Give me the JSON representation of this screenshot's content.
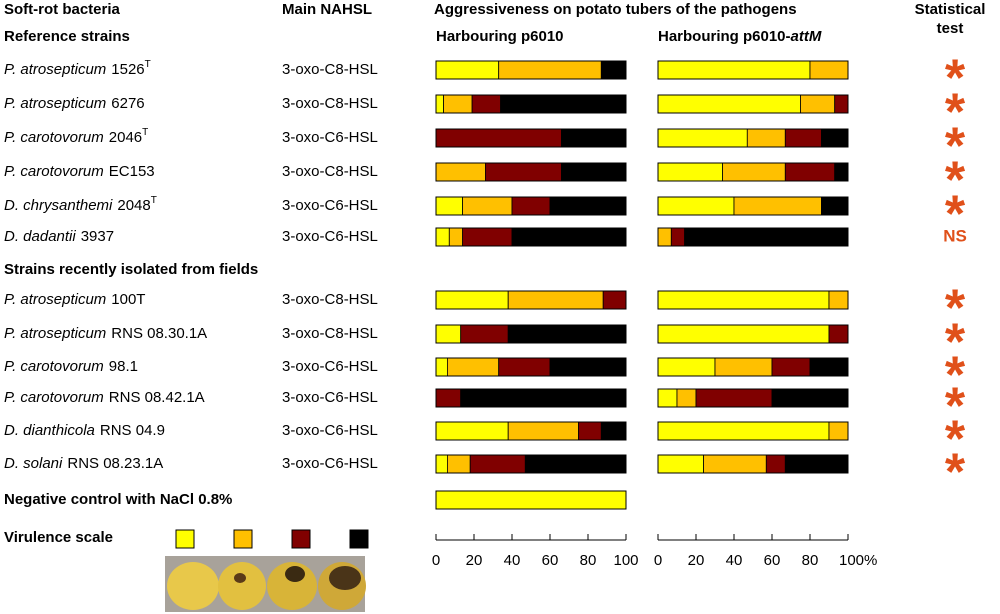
{
  "chart_data": {
    "type": "stacked-bar",
    "headers": {
      "strain": "Soft-rot bacteria",
      "hsl": "Main NAHSL",
      "aggr": "Aggressiveness on potato tubers of the pathogens",
      "test": [
        "Statistical",
        "test"
      ],
      "left_panel": "Harbouring p6010",
      "right_panel": {
        "text": "Harbouring p6010-",
        "italic": "attM"
      }
    },
    "colors": [
      "#ffff00",
      "#ffc000",
      "#800000",
      "#000000"
    ],
    "xlim": [
      0,
      100
    ],
    "xticks": [
      0,
      20,
      40,
      60,
      80,
      100
    ],
    "xticks_right": [
      0,
      20,
      40,
      60,
      80,
      {
        "value": 100,
        "label": "100%"
      }
    ],
    "groups": [
      {
        "title": "Reference strains",
        "rows": [
          {
            "genus": "P. atrosepticum",
            "strain": "1526",
            "sup": "T",
            "hsl": "3-oxo-C8-HSL",
            "p6010": [
              33,
              54,
              0,
              13
            ],
            "attm": [
              80,
              20,
              0,
              0
            ],
            "test": "*"
          },
          {
            "genus": "P. atrosepticum",
            "strain": "6276",
            "hsl": "3-oxo-C8-HSL",
            "p6010": [
              4,
              15,
              15,
              66
            ],
            "attm": [
              75,
              18,
              7,
              0
            ],
            "test": "*"
          },
          {
            "genus": "P. carotovorum",
            "strain": "2046",
            "sup": "T",
            "hsl": "3-oxo-C6-HSL",
            "p6010": [
              0,
              0,
              66,
              34
            ],
            "attm": [
              47,
              20,
              19,
              14
            ],
            "test": "*"
          },
          {
            "genus": "P. carotovorum",
            "strain": "EC153",
            "hsl": "3-oxo-C8-HSL",
            "p6010": [
              0,
              26,
              40,
              34
            ],
            "attm": [
              34,
              33,
              26,
              7
            ],
            "test": "*"
          },
          {
            "genus": "D. chrysanthemi",
            "strain": "2048",
            "sup": "T",
            "hsl": "3-oxo-C6-HSL",
            "p6010": [
              14,
              26,
              20,
              40
            ],
            "attm": [
              40,
              46,
              0,
              14
            ],
            "test": "*"
          },
          {
            "genus": "D. dadantii",
            "strain": "3937",
            "hsl": "3-oxo-C6-HSL",
            "p6010": [
              7,
              7,
              26,
              60
            ],
            "attm": [
              0,
              7,
              7,
              86
            ],
            "test": "NS"
          }
        ]
      },
      {
        "title": "Strains recently isolated from fields",
        "rows": [
          {
            "genus": "P. atrosepticum",
            "strain": "100T",
            "hsl": "3-oxo-C8-HSL",
            "p6010": [
              38,
              50,
              12,
              0
            ],
            "attm": [
              90,
              10,
              0,
              0
            ],
            "test": "*"
          },
          {
            "genus": "P. atrosepticum",
            "strain": "RNS 08.30.1A",
            "hsl": "3-oxo-C8-HSL",
            "p6010": [
              13,
              0,
              25,
              62
            ],
            "attm": [
              90,
              0,
              10,
              0
            ],
            "test": "*"
          },
          {
            "genus": "P. carotovorum",
            "strain": "98.1",
            "hsl": "3-oxo-C6-HSL",
            "p6010": [
              6,
              27,
              27,
              40
            ],
            "attm": [
              30,
              30,
              20,
              20
            ],
            "test": "*"
          },
          {
            "genus": "P. carotovorum",
            "strain": "RNS 08.42.1A",
            "hsl": "3-oxo-C6-HSL",
            "p6010": [
              0,
              0,
              13,
              87
            ],
            "attm": [
              10,
              10,
              40,
              40
            ],
            "test": "*"
          },
          {
            "genus": "D. dianthicola",
            "strain": "RNS 04.9",
            "hsl": "3-oxo-C6-HSL",
            "p6010": [
              38,
              37,
              12,
              13
            ],
            "attm": [
              90,
              10,
              0,
              0
            ],
            "test": "*"
          },
          {
            "genus": "D. solani",
            "strain": "RNS 08.23.1A",
            "hsl": "3-oxo-C6-HSL",
            "p6010": [
              6,
              12,
              29,
              53
            ],
            "attm": [
              24,
              33,
              10,
              33
            ],
            "test": "*"
          }
        ]
      }
    ],
    "control": {
      "label": "Negative control with NaCl 0.8%",
      "p6010": [
        100,
        0,
        0,
        0
      ]
    },
    "legend": {
      "label": "Virulence scale"
    }
  }
}
